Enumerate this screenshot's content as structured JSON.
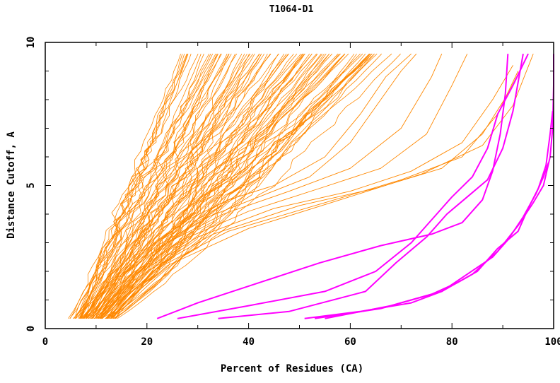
{
  "chart_data": {
    "type": "line",
    "title": "T1064-D1",
    "xlabel": "Percent of Residues (CA)",
    "ylabel": "Distance Cutoff, A",
    "xlim": [
      0,
      100
    ],
    "ylim": [
      0,
      10
    ],
    "x_ticks": [
      0,
      20,
      40,
      60,
      80,
      100
    ],
    "y_ticks": [
      0,
      5,
      10
    ],
    "grid": false,
    "legend": "none",
    "colors": {
      "orange": "#ff8800",
      "magenta": "#ff00ff",
      "axis": "#000000"
    },
    "orange_bundle": {
      "count": 90,
      "start_x_range": [
        5.5,
        14
      ],
      "end_x_range": [
        27,
        68
      ],
      "y_start": 0.35,
      "y_end": 9.6
    },
    "orange_outliers": [
      {
        "x": [
          5.5,
          12,
          20,
          28,
          36,
          45,
          55,
          62,
          67,
          72
        ],
        "y": [
          0.35,
          1.5,
          2.8,
          3.8,
          4.5,
          5.0,
          6.0,
          7.5,
          8.8,
          9.6
        ]
      },
      {
        "x": [
          6,
          13,
          22,
          32,
          42,
          52,
          60,
          66,
          70,
          73
        ],
        "y": [
          0.35,
          1.6,
          2.9,
          3.9,
          4.6,
          5.3,
          6.5,
          8.0,
          9.0,
          9.6
        ]
      },
      {
        "x": [
          7,
          14,
          24,
          35,
          48,
          60,
          70,
          76,
          78
        ],
        "y": [
          0.35,
          1.7,
          3.0,
          4.0,
          4.8,
          5.6,
          7.0,
          8.8,
          9.6
        ]
      },
      {
        "x": [
          8,
          16,
          27,
          40,
          54,
          66,
          75,
          80,
          83
        ],
        "y": [
          0.35,
          1.8,
          3.1,
          4.1,
          4.9,
          5.6,
          6.8,
          8.5,
          9.6
        ]
      },
      {
        "x": [
          9,
          18,
          30,
          45,
          60,
          72,
          82,
          88,
          92
        ],
        "y": [
          0.35,
          1.9,
          3.2,
          4.2,
          4.8,
          5.5,
          6.5,
          8.0,
          9.2
        ]
      },
      {
        "x": [
          10,
          20,
          33,
          50,
          65,
          78,
          86,
          91,
          95
        ],
        "y": [
          0.35,
          2.0,
          3.3,
          4.3,
          4.9,
          5.6,
          6.8,
          8.2,
          9.6
        ]
      },
      {
        "x": [
          11,
          22,
          36,
          55,
          70,
          82,
          89,
          93
        ],
        "y": [
          0.35,
          2.1,
          3.4,
          4.4,
          5.2,
          6.0,
          7.5,
          9.0
        ]
      },
      {
        "x": [
          12,
          24,
          40,
          58,
          74,
          86,
          92,
          96
        ],
        "y": [
          0.35,
          2.2,
          3.5,
          4.5,
          5.4,
          6.4,
          7.8,
          9.6
        ]
      }
    ],
    "series": [
      {
        "color": "magenta",
        "x": [
          22,
          30,
          42,
          54,
          66,
          76,
          82,
          86,
          88,
          89.5,
          90.5,
          91
        ],
        "y": [
          0.35,
          0.9,
          1.6,
          2.3,
          2.9,
          3.3,
          3.7,
          4.5,
          5.5,
          6.8,
          8.2,
          9.6
        ]
      },
      {
        "color": "magenta",
        "x": [
          26,
          40,
          55,
          65,
          72,
          77,
          80,
          84,
          87,
          89,
          92,
          95
        ],
        "y": [
          0.35,
          0.8,
          1.3,
          2.0,
          3.0,
          4.0,
          4.6,
          5.3,
          6.3,
          7.5,
          8.5,
          9.6
        ]
      },
      {
        "color": "magenta",
        "x": [
          34,
          48,
          63,
          69,
          75,
          79,
          83,
          87,
          90,
          92,
          94
        ],
        "y": [
          0.35,
          0.6,
          1.3,
          2.3,
          3.2,
          4.0,
          4.6,
          5.2,
          6.3,
          7.6,
          9.6
        ]
      },
      {
        "color": "magenta",
        "x": [
          51,
          62,
          72,
          78,
          83,
          88,
          91,
          94,
          96.5,
          98,
          99
        ],
        "y": [
          0.35,
          0.6,
          0.9,
          1.3,
          1.9,
          2.5,
          3.1,
          3.9,
          4.7,
          5.3,
          5.8
        ]
      },
      {
        "color": "magenta",
        "x": [
          53,
          66,
          76,
          81,
          85,
          89,
          93,
          95,
          97,
          98.5,
          99.3,
          99.8
        ],
        "y": [
          0.35,
          0.7,
          1.2,
          1.6,
          2.0,
          2.8,
          3.4,
          4.2,
          4.9,
          5.7,
          6.8,
          7.6
        ]
      },
      {
        "color": "magenta",
        "x": [
          55,
          68,
          78,
          84,
          89,
          93,
          96,
          98,
          99.3,
          99.8,
          100,
          100
        ],
        "y": [
          0.35,
          0.8,
          1.3,
          1.9,
          2.7,
          3.6,
          4.4,
          5.0,
          6.0,
          7.0,
          8.5,
          9.6
        ]
      }
    ]
  }
}
